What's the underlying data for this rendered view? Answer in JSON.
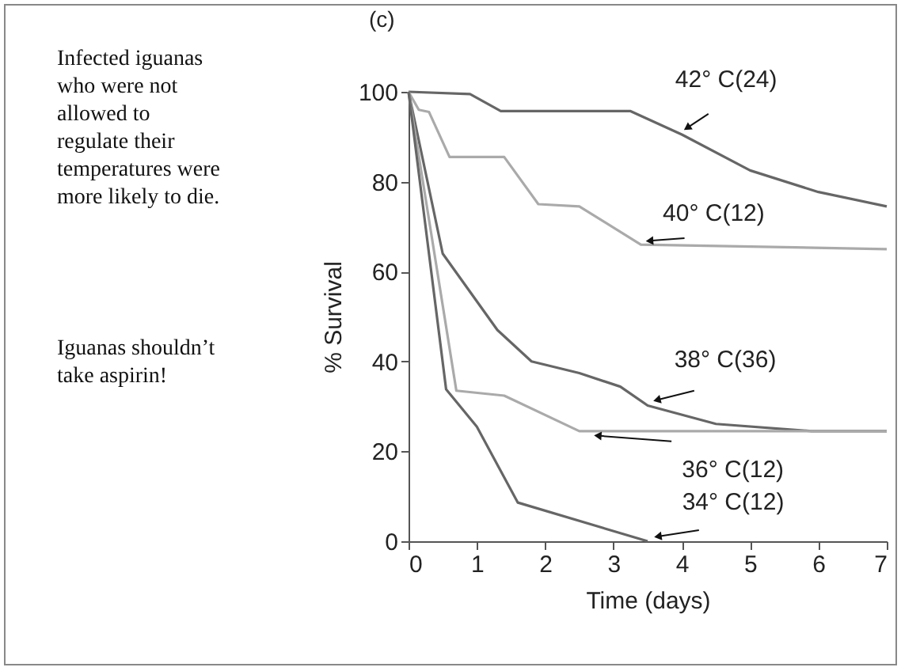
{
  "chart_data": {
    "type": "line",
    "title": "(c)",
    "xlabel": "Time (days)",
    "ylabel": "% Survival",
    "xlim": [
      0,
      7
    ],
    "xticks": [
      0,
      1,
      2,
      3,
      4,
      5,
      6,
      7
    ],
    "ylim": [
      0,
      100
    ],
    "yticks": [
      0,
      20,
      40,
      60,
      80,
      100
    ],
    "grid": false,
    "legend": false,
    "marker": "none",
    "line_style": "solid",
    "annotations": [
      "Infected iguanas\nwho were not\nallowed to\nregulate their\ntemperatures were\nmore likely to die.",
      "Iguanas shouldn’t\ntake aspirin!"
    ],
    "series": [
      {
        "name": "42° C(24)",
        "color": "#666666",
        "x": [
          0,
          0.9,
          1.35,
          3.25,
          4,
          5,
          6,
          7
        ],
        "values": [
          100,
          99.5,
          95.7,
          95.7,
          90.5,
          82.5,
          77.7,
          74.5
        ]
      },
      {
        "name": "40° C(12)",
        "color": "#aaaaaa",
        "x": [
          0,
          0.15,
          0.3,
          0.6,
          1.4,
          1.9,
          2.5,
          3.4,
          7
        ],
        "values": [
          100,
          96,
          95.5,
          85.5,
          85.5,
          75,
          74.5,
          66,
          65
        ]
      },
      {
        "name": "38° C(36)",
        "color": "#666666",
        "x": [
          0,
          0.5,
          1.3,
          1.8,
          2.5,
          3.1,
          3.5,
          4.5,
          5.9,
          7
        ],
        "values": [
          100,
          64,
          47,
          40,
          37.4,
          34.4,
          30.2,
          26.1,
          24.5,
          24.5
        ]
      },
      {
        "name": "36° C(12)",
        "color": "#aaaaaa",
        "x": [
          0,
          0.7,
          1.4,
          2.5,
          7
        ],
        "values": [
          100,
          33.5,
          32.4,
          24.5,
          24.5
        ]
      },
      {
        "name": "34° C(12)",
        "color": "#666666",
        "x": [
          0,
          0.55,
          1.0,
          1.6,
          3.5
        ],
        "values": [
          100,
          33.8,
          25.5,
          8.6,
          0
        ]
      }
    ]
  }
}
